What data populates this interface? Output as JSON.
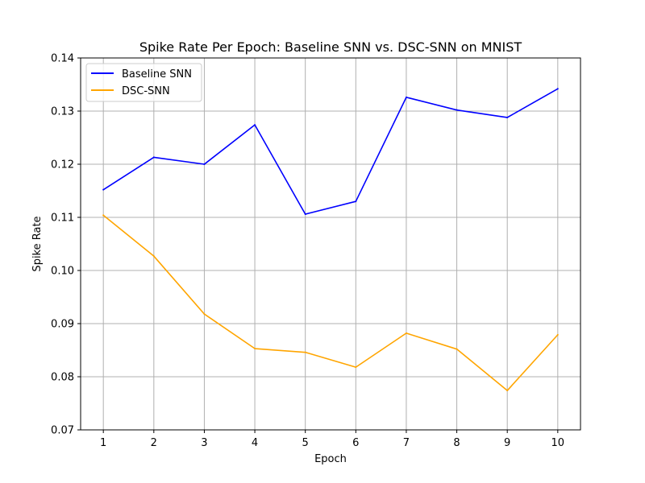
{
  "chart_data": {
    "type": "line",
    "title": "Spike Rate Per Epoch: Baseline SNN vs. DSC-SNN on MNIST",
    "xlabel": "Epoch",
    "ylabel": "Spike Rate",
    "x": [
      1,
      2,
      3,
      4,
      5,
      6,
      7,
      8,
      9,
      10
    ],
    "xlim": [
      0.55,
      10.45
    ],
    "ylim": [
      0.07,
      0.14
    ],
    "xticks": [
      "1",
      "2",
      "3",
      "4",
      "5",
      "6",
      "7",
      "8",
      "9",
      "10"
    ],
    "yticks": [
      "0.07",
      "0.08",
      "0.09",
      "0.10",
      "0.11",
      "0.12",
      "0.13",
      "0.14"
    ],
    "grid": true,
    "legend_position": "top-left",
    "series": [
      {
        "name": "Baseline SNN",
        "color": "#0000ff",
        "values": [
          0.1152,
          0.1213,
          0.12,
          0.1274,
          0.1106,
          0.113,
          0.1326,
          0.1302,
          0.1288,
          0.1342
        ]
      },
      {
        "name": "DSC-SNN",
        "color": "#ffa500",
        "values": [
          0.1104,
          0.1027,
          0.0918,
          0.0853,
          0.0846,
          0.0818,
          0.0882,
          0.0852,
          0.0774,
          0.0879
        ]
      }
    ]
  }
}
